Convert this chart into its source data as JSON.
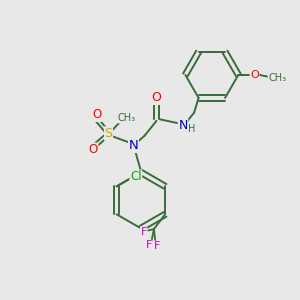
{
  "bg_color": "#e8e8e8",
  "bond_color": "#3a6b3a",
  "atom_colors": {
    "O": "#ff0000",
    "N": "#0000cc",
    "S": "#ccaa00",
    "Cl": "#00aa00",
    "F": "#cc00cc",
    "C": "#3a6b3a",
    "H": "#3a6b3a"
  },
  "figsize": [
    3.0,
    3.0
  ],
  "dpi": 100
}
